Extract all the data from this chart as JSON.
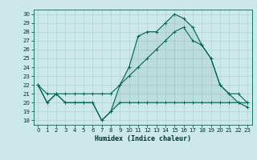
{
  "xlabel": "Humidex (Indice chaleur)",
  "background_color": "#cce8e8",
  "grid_color": "#aacccc",
  "line_color": "#006655",
  "xlim": [
    -0.5,
    23.5
  ],
  "ylim": [
    17.5,
    30.5
  ],
  "yticks": [
    18,
    19,
    20,
    21,
    22,
    23,
    24,
    25,
    26,
    27,
    28,
    29,
    30
  ],
  "xticks": [
    0,
    1,
    2,
    3,
    4,
    5,
    6,
    7,
    8,
    9,
    10,
    11,
    12,
    13,
    14,
    15,
    16,
    17,
    18,
    19,
    20,
    21,
    22,
    23
  ],
  "series_min": {
    "x": [
      0,
      1,
      2,
      3,
      4,
      5,
      6,
      7,
      8,
      9,
      10,
      11,
      12,
      13,
      14,
      15,
      16,
      17,
      18,
      19,
      20,
      21,
      22,
      23
    ],
    "y": [
      22,
      20,
      21,
      20,
      20,
      20,
      20,
      18,
      19,
      20,
      20,
      20,
      20,
      20,
      20,
      20,
      20,
      20,
      20,
      20,
      20,
      20,
      20,
      20
    ]
  },
  "series_mean": {
    "x": [
      0,
      1,
      2,
      3,
      4,
      5,
      6,
      7,
      8,
      9,
      10,
      11,
      12,
      13,
      14,
      15,
      16,
      17,
      18,
      19,
      20,
      21,
      22,
      23
    ],
    "y": [
      22,
      21,
      21,
      21,
      21,
      21,
      21,
      21,
      21,
      22,
      23,
      24,
      25,
      26,
      27,
      28,
      28.5,
      27,
      26.5,
      25,
      22,
      21,
      21,
      20
    ]
  },
  "series_max": {
    "x": [
      0,
      1,
      2,
      3,
      4,
      5,
      6,
      7,
      8,
      9,
      10,
      11,
      12,
      13,
      14,
      15,
      16,
      17,
      18,
      19,
      20,
      21,
      22,
      23
    ],
    "y": [
      22,
      20,
      21,
      20,
      20,
      20,
      20,
      18,
      19,
      22,
      24,
      27.5,
      28,
      28,
      29,
      30,
      29.5,
      28.5,
      26.5,
      25,
      22,
      21,
      20,
      19.5
    ]
  }
}
